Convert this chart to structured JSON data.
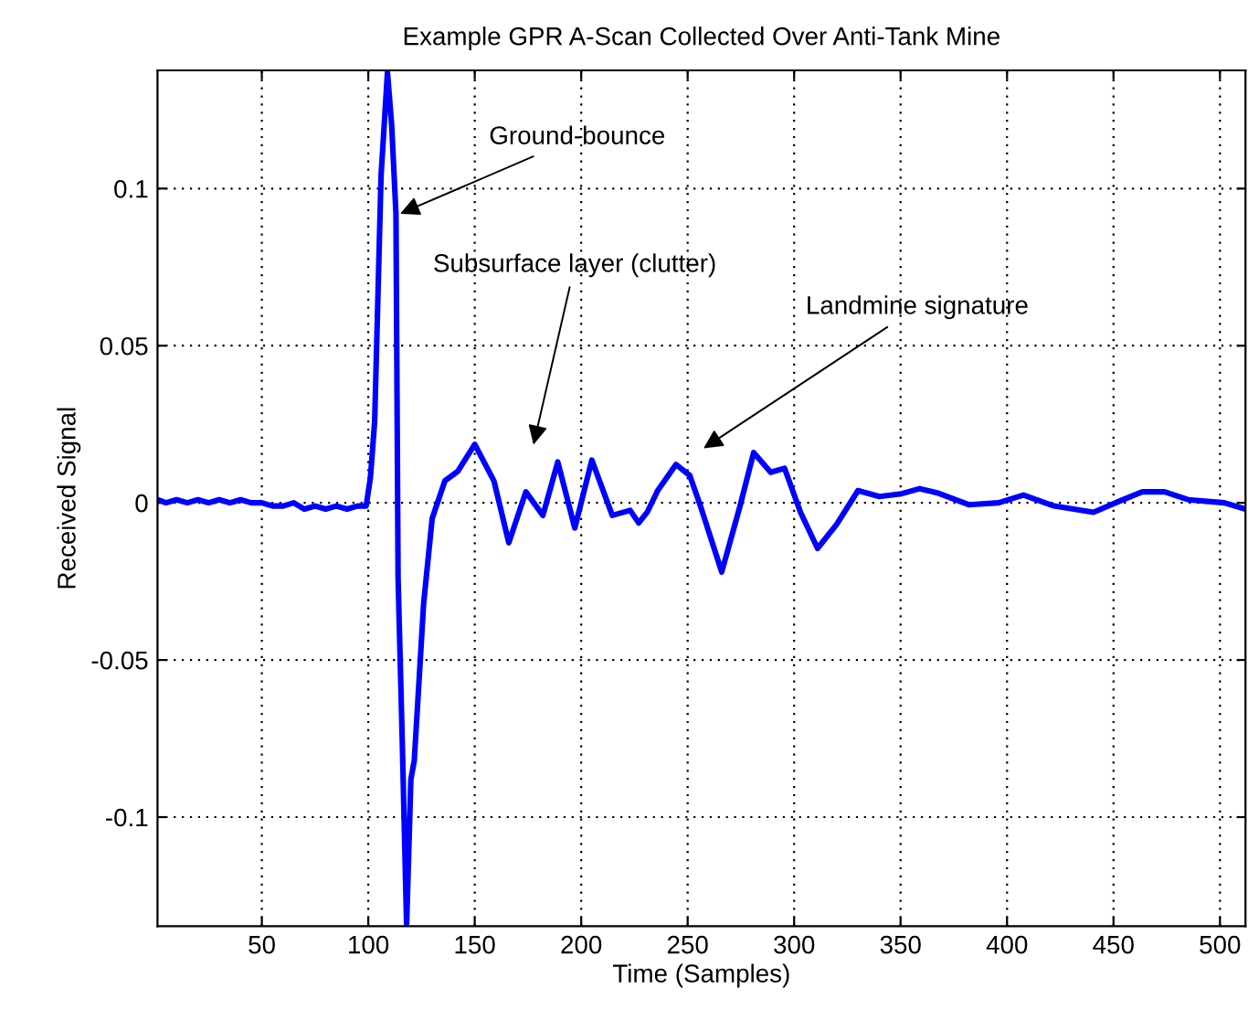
{
  "chart_data": {
    "type": "line",
    "title": "Example GPR A-Scan Collected Over Anti-Tank Mine",
    "xlabel": "Time (Samples)",
    "ylabel": "Received Signal",
    "xlim": [
      1,
      512
    ],
    "ylim": [
      -0.1347,
      0.1376
    ],
    "xticks": [
      50,
      100,
      150,
      200,
      250,
      300,
      350,
      400,
      450,
      500
    ],
    "yticks": [
      -0.1,
      -0.05,
      0,
      0.05,
      0.1
    ],
    "grid": true,
    "marker": "none",
    "line_style": "solid",
    "series": [
      {
        "color": "#0000ff",
        "x": [
          1,
          5,
          10,
          15,
          20,
          25,
          30,
          35,
          40,
          45,
          50,
          55,
          60,
          65,
          70,
          75,
          80,
          85,
          90,
          95,
          99,
          101,
          103,
          106,
          109,
          111,
          113,
          114,
          116,
          118,
          120,
          121.6,
          126,
          130,
          136,
          142,
          150,
          159,
          166,
          174,
          182,
          189,
          197,
          205,
          214.6,
          223,
          227,
          231,
          236,
          244.5,
          251,
          256,
          266,
          274.6,
          281,
          289,
          295.5,
          303,
          311,
          320,
          330,
          340,
          350.5,
          359,
          368,
          382,
          396,
          407.7,
          422,
          440.6,
          453,
          463.5,
          474,
          485,
          502,
          512
        ],
        "values": [
          0.001,
          0,
          0.001,
          0,
          0.001,
          0,
          0.001,
          0,
          0.001,
          0,
          0,
          -0.001,
          -0.001,
          0,
          -0.002,
          -0.001,
          -0.002,
          -0.001,
          -0.002,
          -0.001,
          -0.001,
          0.008,
          0.026,
          0.104,
          0.137,
          0.12,
          0.092,
          -0.024,
          -0.077,
          -0.1345,
          -0.088,
          -0.082,
          -0.032,
          -0.005,
          0.007,
          0.01,
          0.0186,
          0.007,
          -0.0127,
          0.0035,
          -0.004,
          0.013,
          -0.008,
          0.0136,
          -0.004,
          -0.0024,
          -0.0064,
          -0.003,
          0.004,
          0.0122,
          0.0087,
          -0.001,
          -0.022,
          -0.001,
          0.016,
          0.0097,
          0.011,
          -0.003,
          -0.0145,
          -0.0068,
          0.0039,
          0.002,
          0.0029,
          0.0045,
          0.003,
          -0.0006,
          0,
          0.0025,
          -0.001,
          -0.003,
          0.0006,
          0.0035,
          0.0035,
          0.001,
          0,
          -0.002
        ]
      }
    ],
    "annotations": [
      {
        "text": "Ground-bounce",
        "x": 115,
        "y": 0.092
      },
      "Subsurface layer (clutter)",
      "Landmine signature"
    ]
  }
}
